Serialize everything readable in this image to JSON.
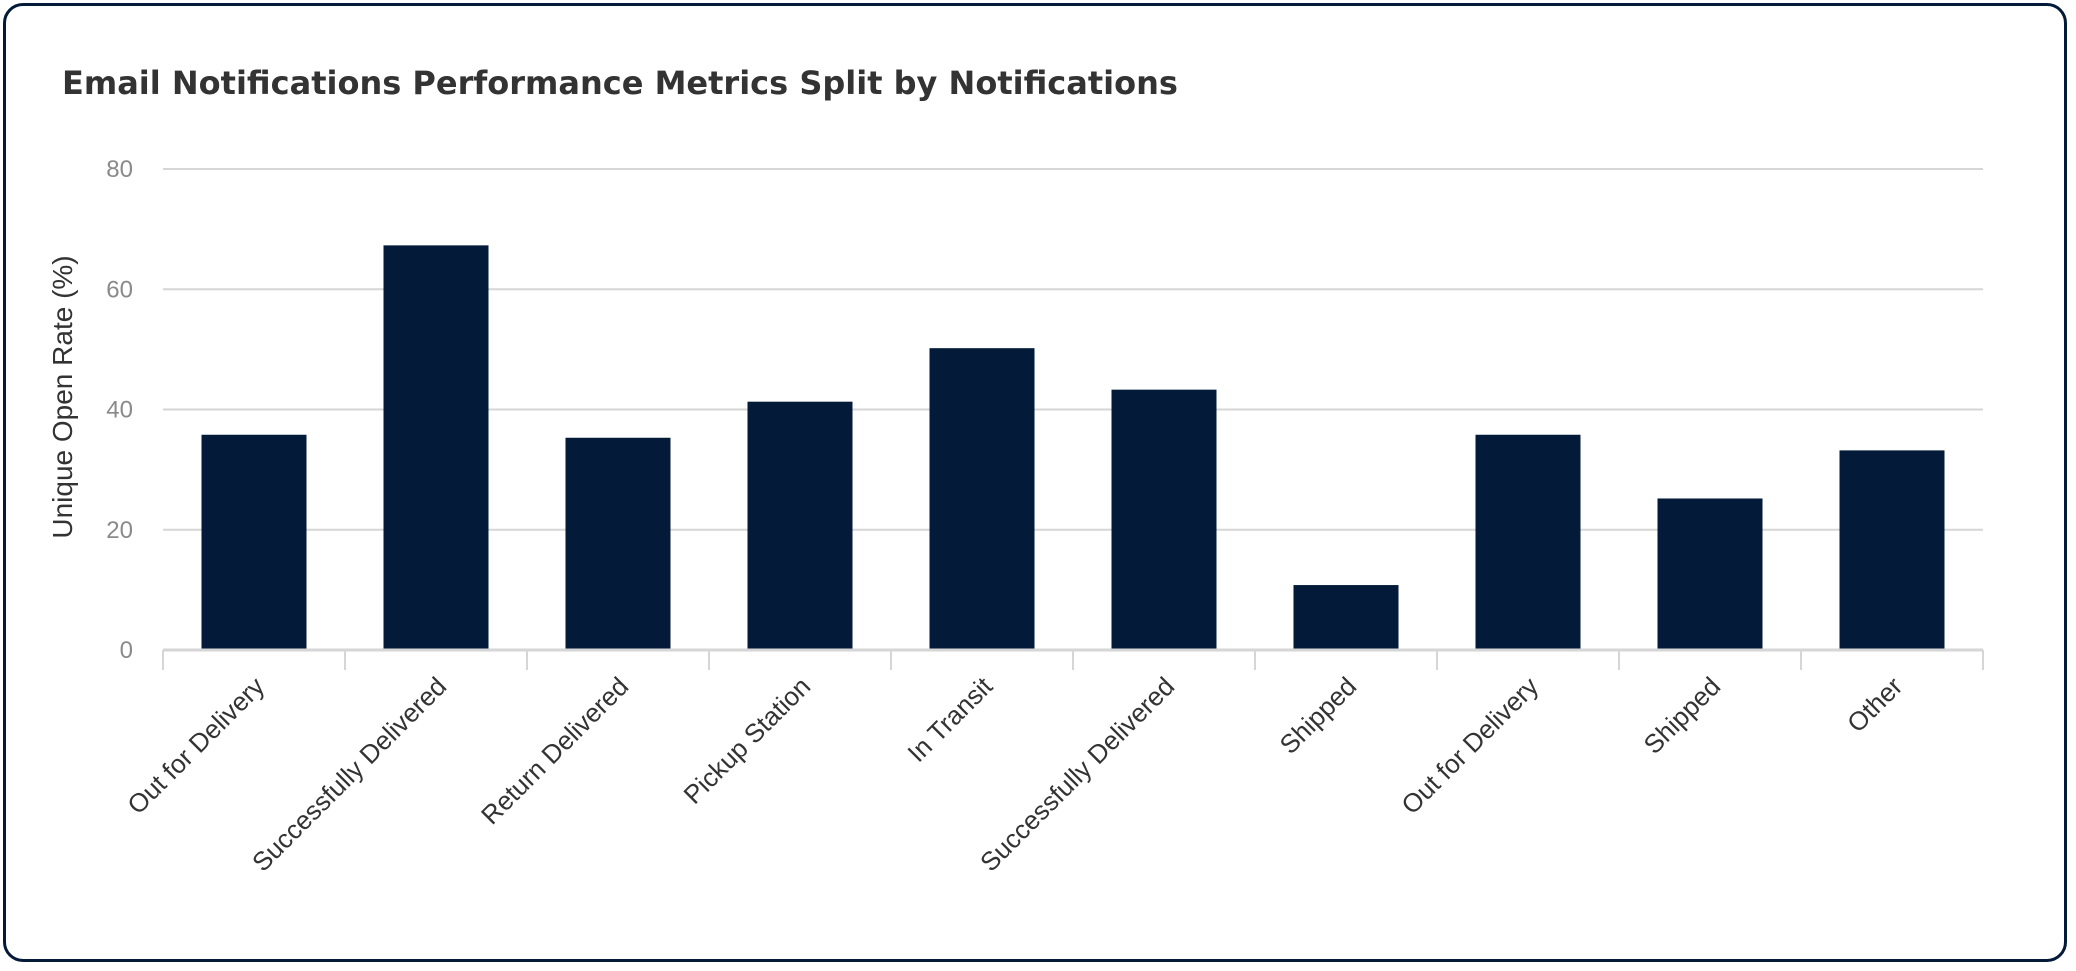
{
  "card": {
    "title": "Email Notifications Performance Metrics Split by Notifications"
  },
  "chart_data": {
    "type": "bar",
    "title": "Email Notifications Performance Metrics Split by Notifications",
    "xlabel": "",
    "ylabel": "Unique Open Rate (%)",
    "categories": [
      "Out for Delivery",
      "Successfully Delivered",
      "Return Delivered",
      "Pickup Station",
      "In Transit",
      "Successfully Delivered",
      "Shipped",
      "Out for Delivery",
      "Shipped",
      "Other"
    ],
    "values": [
      35.8,
      67.3,
      35.3,
      41.3,
      50.2,
      43.3,
      10.8,
      35.8,
      25.2,
      33.2
    ],
    "ylim": [
      0,
      80
    ],
    "yticks": [
      0,
      20,
      40,
      60,
      80
    ],
    "grid": true,
    "legend": "none",
    "colors": {
      "bar": "#031a38",
      "grid": "#d6d6d6",
      "border": "#031a38"
    }
  }
}
